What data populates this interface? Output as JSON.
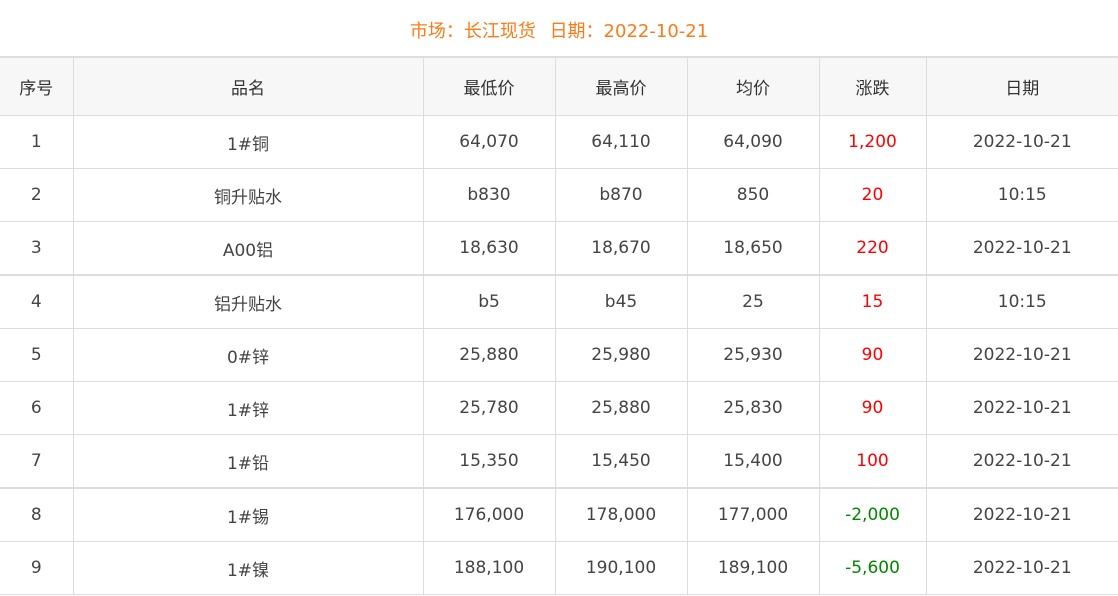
{
  "header": {
    "market_label": "市场：长江现货",
    "date_label": "日期：2022-10-21"
  },
  "colors": {
    "title": "#ff7a14",
    "up": "#ff0000",
    "down": "#008800"
  },
  "columns": [
    "序号",
    "品名",
    "最低价",
    "最高价",
    "均价",
    "涨跌",
    "日期"
  ],
  "rows": [
    {
      "no": "1",
      "name": "1#铜",
      "low": "64,070",
      "high": "64,110",
      "avg": "64,090",
      "change": "1,200",
      "dir": "up",
      "date": "2022-10-21"
    },
    {
      "no": "2",
      "name": "铜升贴水",
      "low": "b830",
      "high": "b870",
      "avg": "850",
      "change": "20",
      "dir": "up",
      "date": "10:15"
    },
    {
      "no": "3",
      "name": "A00铝",
      "low": "18,630",
      "high": "18,670",
      "avg": "18,650",
      "change": "220",
      "dir": "up",
      "date": "2022-10-21"
    },
    {
      "no": "4",
      "name": "铝升贴水",
      "low": "b5",
      "high": "b45",
      "avg": "25",
      "change": "15",
      "dir": "up",
      "date": "10:15"
    },
    {
      "no": "5",
      "name": "0#锌",
      "low": "25,880",
      "high": "25,980",
      "avg": "25,930",
      "change": "90",
      "dir": "up",
      "date": "2022-10-21"
    },
    {
      "no": "6",
      "name": "1#锌",
      "low": "25,780",
      "high": "25,880",
      "avg": "25,830",
      "change": "90",
      "dir": "up",
      "date": "2022-10-21"
    },
    {
      "no": "7",
      "name": "1#铅",
      "low": "15,350",
      "high": "15,450",
      "avg": "15,400",
      "change": "100",
      "dir": "up",
      "date": "2022-10-21"
    },
    {
      "no": "8",
      "name": "1#锡",
      "low": "176,000",
      "high": "178,000",
      "avg": "177,000",
      "change": "-2,000",
      "dir": "down",
      "date": "2022-10-21"
    },
    {
      "no": "9",
      "name": "1#镍",
      "low": "188,100",
      "high": "190,100",
      "avg": "189,100",
      "change": "-5,600",
      "dir": "down",
      "date": "2022-10-21"
    }
  ]
}
